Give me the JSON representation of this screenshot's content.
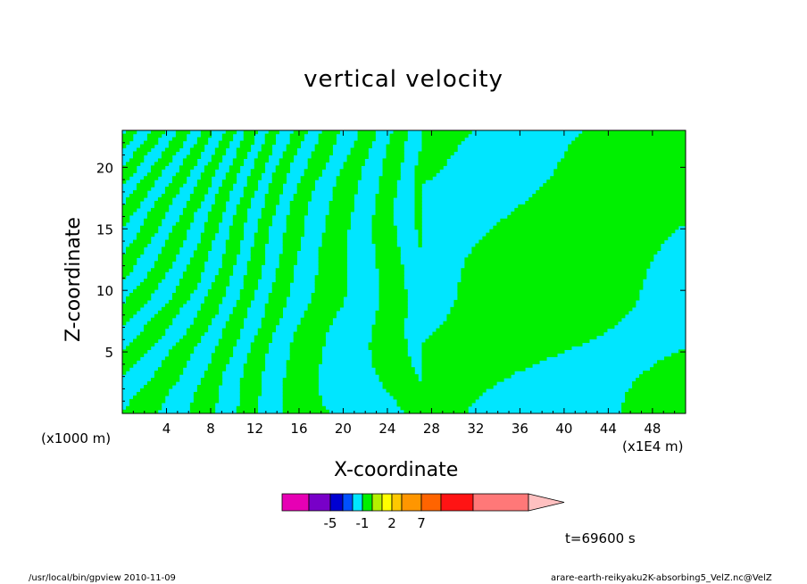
{
  "chart_data": {
    "type": "heatmap",
    "title": "vertical velocity",
    "xlabel": "X-coordinate",
    "ylabel": "Z-coordinate",
    "x_unit_left": "(x1000 m)",
    "x_unit_right": "(x1E4 m)",
    "xlim": [
      0,
      51
    ],
    "ylim": [
      0,
      23
    ],
    "x_ticks": [
      "4",
      "8",
      "12",
      "16",
      "20",
      "24",
      "28",
      "32",
      "36",
      "40",
      "44",
      "48"
    ],
    "x_tick_values": [
      4,
      8,
      12,
      16,
      20,
      24,
      28,
      32,
      36,
      40,
      44,
      48
    ],
    "y_ticks": [
      "5",
      "10",
      "15",
      "20"
    ],
    "y_tick_values": [
      5,
      10,
      15,
      20
    ],
    "field_colors": {
      "negative": "#00e6ff",
      "positive": "#00f000"
    },
    "colorbar": {
      "colors": [
        "#e600b4",
        "#7800c8",
        "#0000d2",
        "#0050ff",
        "#00e6ff",
        "#00f000",
        "#b4f000",
        "#ffff00",
        "#ffc800",
        "#ff9600",
        "#ff6400",
        "#ff1414",
        "#ff7878",
        "#ffc0c0"
      ],
      "labels": [
        "-5",
        "-1",
        "2",
        "7"
      ],
      "label_values": [
        -5,
        -1,
        2,
        7
      ]
    },
    "time_label": "t=69600 s"
  },
  "footer": {
    "left": "/usr/local/bin/gpview  2010-11-09",
    "right": "arare-earth-reikyaku2K-absorbing5_VelZ.nc@VelZ"
  }
}
